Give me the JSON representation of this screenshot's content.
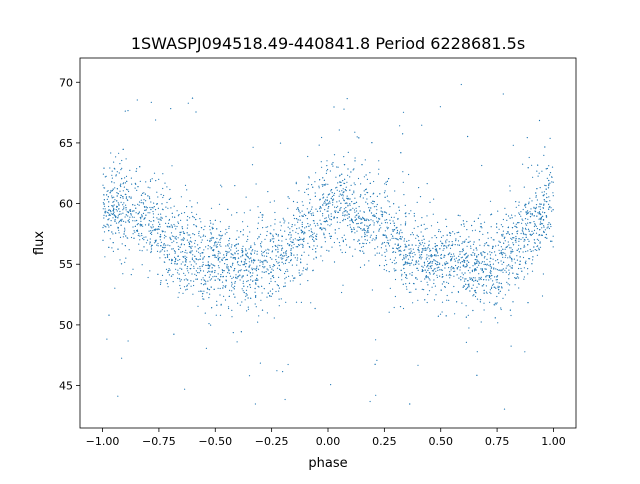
{
  "chart_data": {
    "type": "scatter",
    "title": "1SWASPJ094518.49-440841.8 Period 6228681.5s",
    "xlabel": "phase",
    "ylabel": "flux",
    "xlim": [
      -1.1,
      1.1
    ],
    "ylim": [
      41.5,
      72
    ],
    "grid": false,
    "color": "#1f77b4",
    "x_ticks": [
      -1.0,
      -0.75,
      -0.5,
      -0.25,
      0.0,
      0.25,
      0.5,
      0.75,
      1.0
    ],
    "x_tick_labels": [
      "−1.00",
      "−0.75",
      "−0.50",
      "−0.25",
      "0.00",
      "0.25",
      "0.50",
      "0.75",
      "1.00"
    ],
    "y_ticks": [
      45,
      50,
      55,
      60,
      65,
      70
    ],
    "y_tick_labels": [
      "45",
      "50",
      "55",
      "60",
      "65",
      "70"
    ],
    "binned_profile": {
      "phase": [
        -1.0,
        -0.95,
        -0.9,
        -0.85,
        -0.8,
        -0.75,
        -0.7,
        -0.65,
        -0.6,
        -0.55,
        -0.5,
        -0.45,
        -0.4,
        -0.35,
        -0.3,
        -0.25,
        -0.2,
        -0.15,
        -0.1,
        -0.05,
        0.0,
        0.05,
        0.1,
        0.15,
        0.2,
        0.25,
        0.3,
        0.35,
        0.4,
        0.45,
        0.5,
        0.55,
        0.6,
        0.65,
        0.7,
        0.75,
        0.8,
        0.85,
        0.9,
        0.95,
        1.0
      ],
      "mean_flux": [
        59,
        60,
        59.5,
        59,
        59,
        58,
        57,
        56,
        56,
        55,
        55.5,
        55,
        55,
        55,
        55,
        55,
        56,
        57,
        58,
        59,
        60,
        60,
        59.5,
        59,
        59,
        58,
        57,
        56,
        56,
        55,
        55.5,
        55,
        55,
        55,
        55,
        55,
        56,
        57,
        58,
        59,
        60
      ],
      "scatter_sd": 1.8,
      "outlier_range": [
        43,
        70.5
      ]
    }
  }
}
